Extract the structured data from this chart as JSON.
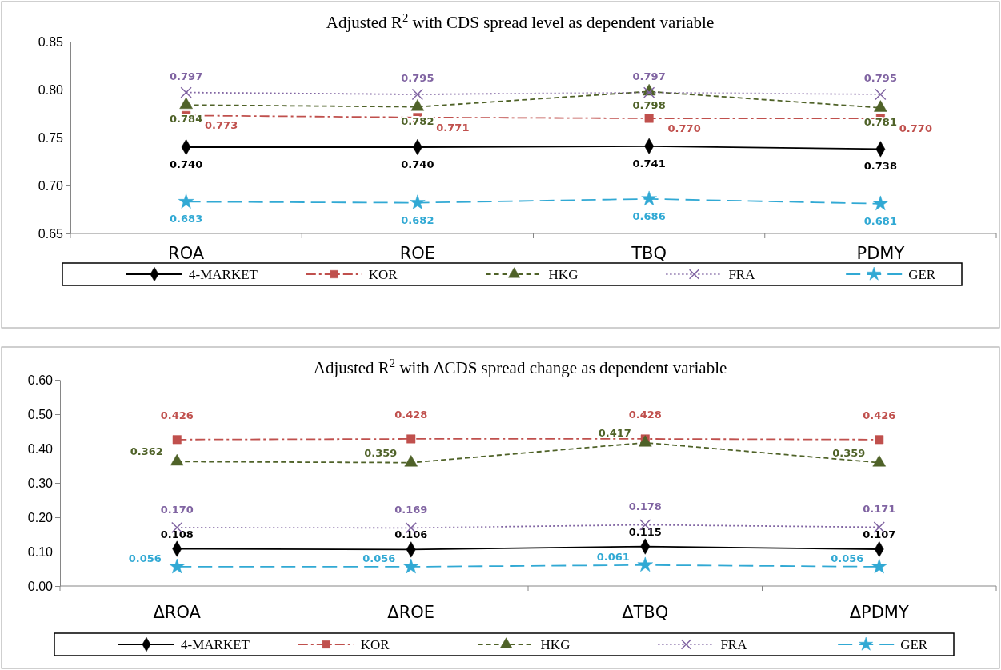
{
  "chart_data": [
    {
      "type": "line",
      "title": "Adjusted R$^{2}$ with CDS spread level as dependent variable",
      "categories": [
        "ROA",
        "ROE",
        "TBQ",
        "PDMY"
      ],
      "ylim": [
        0.65,
        0.85
      ],
      "yticks": [
        {
          "value": 0.65,
          "label": "0.65"
        },
        {
          "value": 0.7,
          "label": "0.70"
        },
        {
          "value": 0.75,
          "label": "0.75"
        },
        {
          "value": 0.8,
          "label": "0.80"
        },
        {
          "value": 0.85,
          "label": "0.85"
        }
      ],
      "grid": false,
      "legend": "bottom",
      "series": [
        {
          "name": "4-MARKET",
          "color": "#000000",
          "marker": "diamond",
          "line_style": "solid",
          "values": [
            0.74,
            0.74,
            0.741,
            0.738
          ],
          "value_labels": [
            "0.740",
            "0.740",
            "0.741",
            "0.738"
          ]
        },
        {
          "name": "KOR",
          "color": "#c0504d",
          "marker": "square",
          "line_style": "dashdot",
          "values": [
            0.773,
            0.771,
            0.77,
            0.77
          ],
          "value_labels": [
            "0.773",
            "0.771",
            "0.770",
            "0.770"
          ]
        },
        {
          "name": "HKG",
          "color": "#4f6228",
          "marker": "triangle",
          "line_style": "dashed",
          "values": [
            0.784,
            0.782,
            0.798,
            0.781
          ],
          "value_labels": [
            "0.784",
            "0.782",
            "0.798",
            "0.781"
          ]
        },
        {
          "name": "FRA",
          "color": "#8064a2",
          "marker": "cross",
          "line_style": "dotted",
          "values": [
            0.797,
            0.795,
            0.797,
            0.795
          ],
          "value_labels": [
            "0.797",
            "0.795",
            "0.797",
            "0.795"
          ]
        },
        {
          "name": "GER",
          "color": "#31a9d4",
          "marker": "star",
          "line_style": "longdash",
          "values": [
            0.683,
            0.682,
            0.686,
            0.681
          ],
          "value_labels": [
            "0.683",
            "0.682",
            "0.686",
            "0.681"
          ]
        }
      ]
    },
    {
      "type": "line",
      "title": "Adjusted R$^{2}$ with ΔCDS spread change as dependent variable",
      "categories": [
        "ΔROA",
        "ΔROE",
        "ΔTBQ",
        "ΔPDMY"
      ],
      "ylim": [
        0,
        0.6
      ],
      "yticks": [
        {
          "value": 0,
          "label": "0.00"
        },
        {
          "value": 0.1,
          "label": "0.10"
        },
        {
          "value": 0.2,
          "label": "0.20"
        },
        {
          "value": 0.3,
          "label": "0.30"
        },
        {
          "value": 0.4,
          "label": "0.40"
        },
        {
          "value": 0.5,
          "label": "0.50"
        },
        {
          "value": 0.6,
          "label": "0.60"
        }
      ],
      "grid": false,
      "legend": "bottom",
      "series": [
        {
          "name": "4-MARKET",
          "color": "#000000",
          "marker": "diamond",
          "line_style": "solid",
          "values": [
            0.108,
            0.106,
            0.115,
            0.107
          ],
          "value_labels": [
            "0.108",
            "0.106",
            "0.115",
            "0.107"
          ]
        },
        {
          "name": "KOR",
          "color": "#c0504d",
          "marker": "square",
          "line_style": "dashdot",
          "values": [
            0.426,
            0.428,
            0.428,
            0.426
          ],
          "value_labels": [
            "0.426",
            "0.428",
            "0.428",
            "0.426"
          ]
        },
        {
          "name": "HKG",
          "color": "#4f6228",
          "marker": "triangle",
          "line_style": "dashed",
          "values": [
            0.362,
            0.359,
            0.417,
            0.359
          ],
          "value_labels": [
            "0.362",
            "0.359",
            "0.417",
            "0.359"
          ]
        },
        {
          "name": "FRA",
          "color": "#8064a2",
          "marker": "cross",
          "line_style": "dotted",
          "values": [
            0.17,
            0.169,
            0.178,
            0.171
          ],
          "value_labels": [
            "0.170",
            "0.169",
            "0.178",
            "0.171"
          ]
        },
        {
          "name": "GER",
          "color": "#31a9d4",
          "marker": "star",
          "line_style": "longdash",
          "values": [
            0.056,
            0.056,
            0.061,
            0.056
          ],
          "value_labels": [
            "0.056",
            "0.056",
            "0.061",
            "0.056"
          ]
        }
      ]
    }
  ]
}
